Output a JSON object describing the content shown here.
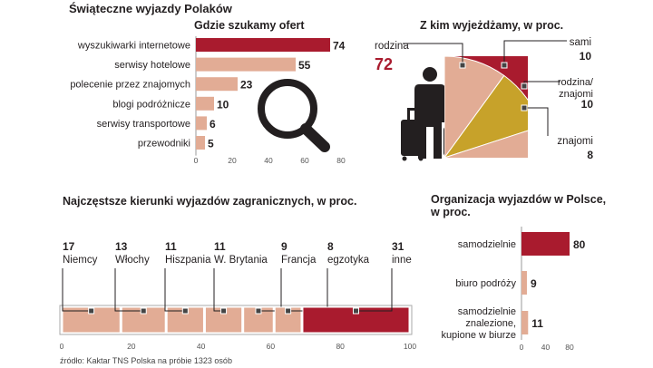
{
  "page": {
    "title": "Świąteczne wyjazdy Polaków",
    "source": "źródło: Kaktar TNS Polska na próbie 1323 osób"
  },
  "colors": {
    "accent": "#a91b2e",
    "light": "#e2ac95",
    "gold": "#c7a22a",
    "ink": "#231f20"
  },
  "icons": [
    "magnifier-icon",
    "traveler-icon",
    "suitcase-icon"
  ],
  "chart_data": [
    {
      "id": "search",
      "type": "bar",
      "title": "Gdzie szukamy ofert",
      "categories": [
        "wyszukiwarki internetowe",
        "serwisy hotelowe",
        "polecenie przez znajomych",
        "blogi podróżnicze",
        "serwisy transportowe",
        "przewodniki"
      ],
      "values": [
        74,
        55,
        23,
        10,
        6,
        5
      ],
      "highlight": 0,
      "xlim": [
        0,
        80
      ],
      "xticks": [
        0,
        20,
        40,
        60,
        80
      ]
    },
    {
      "id": "with-whom",
      "type": "pie",
      "title": "Z kim wyjeżdżamy, w proc.",
      "categories": [
        "rodzina",
        "sami",
        "rodzina/\nznajomi",
        "znajomi"
      ],
      "values": [
        72,
        10,
        10,
        8
      ]
    },
    {
      "id": "destinations",
      "type": "bar",
      "title": "Najczęstsze kierunki wyjazdów zagranicznych, w proc.",
      "categories": [
        "Niemcy",
        "Włochy",
        "Hiszpania",
        "W. Brytania",
        "Francja",
        "egzotyka",
        "inne"
      ],
      "values": [
        17,
        13,
        11,
        11,
        9,
        8,
        31
      ],
      "stacked": true,
      "xlim": [
        0,
        100
      ],
      "xticks": [
        0,
        20,
        40,
        60,
        80,
        100
      ]
    },
    {
      "id": "organization",
      "type": "bar",
      "title": "Organizacja wyjazdów w Polsce,\nw proc.",
      "categories": [
        "samodzielnie",
        "biuro podróży",
        "samodzielnie\nznalezione,\nkupione w biurze"
      ],
      "values": [
        80,
        9,
        11
      ],
      "highlight": 0,
      "xlim": [
        0,
        80
      ],
      "xticks": [
        0,
        40,
        80
      ]
    }
  ]
}
